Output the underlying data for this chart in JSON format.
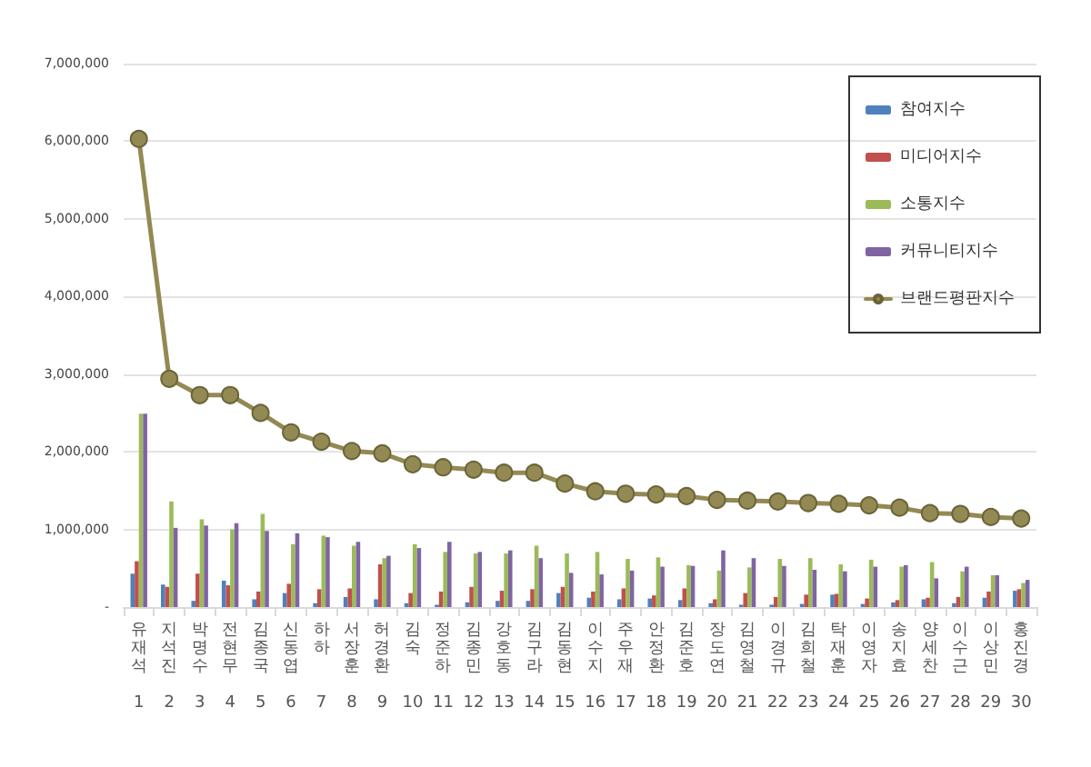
{
  "chart_data": {
    "type": "bar",
    "categories": [
      "유재석 1",
      "지석진 2",
      "박명수 3",
      "전현무 4",
      "김종국 5",
      "신동엽 6",
      "하하 7",
      "서장훈 8",
      "허경환 9",
      "김숙 10",
      "정준하 11",
      "김종민 12",
      "강호동 13",
      "김구라 14",
      "김동현 15",
      "이수지 16",
      "주우재 17",
      "안정환 18",
      "김준호 19",
      "장도연 20",
      "김영철 21",
      "이경규 22",
      "김희철 23",
      "탁재훈 24",
      "이영자 25",
      "송지효 26",
      "양세찬 27",
      "이수근 28",
      "이상민 29",
      "홍진경 30"
    ],
    "series": [
      {
        "name": "참여지수",
        "color": "#4f81bd",
        "values": [
          430000,
          290000,
          80000,
          340000,
          100000,
          180000,
          50000,
          130000,
          100000,
          50000,
          30000,
          60000,
          80000,
          80000,
          180000,
          120000,
          100000,
          110000,
          90000,
          50000,
          30000,
          30000,
          40000,
          160000,
          40000,
          60000,
          100000,
          50000,
          120000,
          210000
        ]
      },
      {
        "name": "미디어지수",
        "color": "#c0504d",
        "values": [
          590000,
          260000,
          430000,
          280000,
          200000,
          300000,
          230000,
          240000,
          550000,
          180000,
          200000,
          260000,
          210000,
          230000,
          260000,
          200000,
          240000,
          150000,
          240000,
          100000,
          180000,
          130000,
          160000,
          170000,
          110000,
          90000,
          120000,
          130000,
          200000,
          230000
        ]
      },
      {
        "name": "소통지수",
        "color": "#9bbb59",
        "values": [
          2490000,
          1360000,
          1130000,
          1000000,
          1200000,
          810000,
          920000,
          790000,
          630000,
          810000,
          710000,
          690000,
          690000,
          790000,
          690000,
          710000,
          620000,
          640000,
          540000,
          470000,
          510000,
          620000,
          630000,
          550000,
          610000,
          520000,
          580000,
          460000,
          410000,
          310000
        ]
      },
      {
        "name": "커뮤니티지수",
        "color": "#8064a2",
        "values": [
          2490000,
          1020000,
          1050000,
          1080000,
          980000,
          950000,
          900000,
          840000,
          660000,
          760000,
          840000,
          710000,
          730000,
          630000,
          440000,
          420000,
          470000,
          520000,
          530000,
          730000,
          630000,
          530000,
          480000,
          460000,
          520000,
          540000,
          370000,
          520000,
          410000,
          350000
        ]
      },
      {
        "name": "브랜드평판지수",
        "type": "line",
        "color": "#938953",
        "marker": "circle",
        "values": [
          6030000,
          2940000,
          2730000,
          2730000,
          2500000,
          2250000,
          2130000,
          2010000,
          1980000,
          1840000,
          1800000,
          1770000,
          1730000,
          1730000,
          1590000,
          1490000,
          1460000,
          1450000,
          1430000,
          1380000,
          1370000,
          1360000,
          1340000,
          1330000,
          1310000,
          1280000,
          1210000,
          1200000,
          1160000,
          1140000
        ]
      }
    ],
    "ylim": [
      0,
      7000000
    ],
    "yticks": [
      {
        "value": 0,
        "label": "-"
      },
      {
        "value": 1000000,
        "label": "1,000,000"
      },
      {
        "value": 2000000,
        "label": "2,000,000"
      },
      {
        "value": 3000000,
        "label": "3,000,000"
      },
      {
        "value": 4000000,
        "label": "4,000,000"
      },
      {
        "value": 5000000,
        "label": "5,000,000"
      },
      {
        "value": 6000000,
        "label": "6,000,000"
      },
      {
        "value": 7000000,
        "label": "7,000,000"
      }
    ],
    "grid": "y",
    "legend": "top right"
  }
}
